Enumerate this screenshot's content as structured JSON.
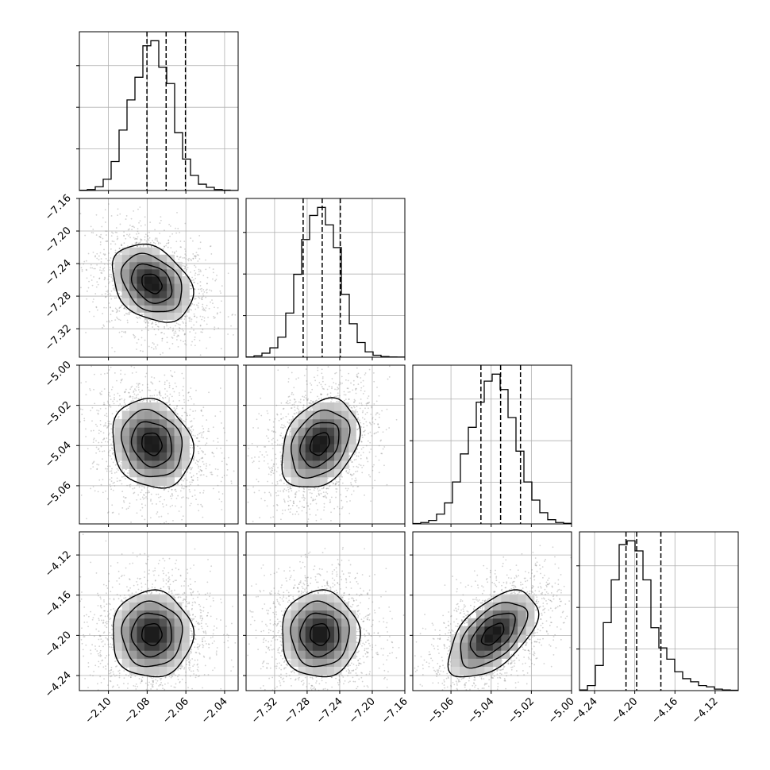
{
  "chart_data": {
    "type": "corner",
    "parameters": 4,
    "axes": [
      {
        "range": [
          -2.115,
          -2.033
        ],
        "ticks": [
          -2.1,
          -2.08,
          -2.06,
          -2.04
        ],
        "tick_labels": [
          "−2.10",
          "−2.08",
          "−2.06",
          "−2.04"
        ]
      },
      {
        "range": [
          -7.355,
          -7.16
        ],
        "ticks": [
          -7.32,
          -7.28,
          -7.24,
          -7.2,
          -7.16
        ],
        "tick_labels": [
          "−7.32",
          "−7.28",
          "−7.24",
          "−7.20",
          "−7.16"
        ]
      },
      {
        "range": [
          -5.079,
          -5.0
        ],
        "ticks": [
          -5.06,
          -5.04,
          -5.02,
          -5.0
        ],
        "tick_labels": [
          "−5.06",
          "−5.04",
          "−5.02",
          "−5.00"
        ]
      },
      {
        "range": [
          -4.255,
          -4.097
        ],
        "ticks": [
          -4.24,
          -4.2,
          -4.16,
          -4.12
        ],
        "tick_labels": [
          "−4.24",
          "−4.20",
          "−4.16",
          "−4.12"
        ]
      }
    ],
    "row_tick_labels": {
      "1": [
        "−7.16",
        "−7.20",
        "−7.24",
        "−7.28",
        "−7.32"
      ],
      "2": [
        "−5.00",
        "−5.02",
        "−5.04",
        "−5.06"
      ],
      "3": [
        "−4.12",
        "−4.16",
        "−4.20",
        "−4.24"
      ]
    },
    "histograms": [
      {
        "bin_edges": [
          -2.115,
          -2.1109,
          -2.1068,
          -2.1027,
          -2.0986,
          -2.0945,
          -2.0904,
          -2.0863,
          -2.0822,
          -2.0781,
          -2.074,
          -2.0699,
          -2.0658,
          -2.0617,
          -2.0576,
          -2.0535,
          -2.0494,
          -2.0453,
          -2.0412,
          -2.0371,
          -2.033
        ],
        "counts": [
          2,
          8,
          30,
          90,
          230,
          480,
          720,
          900,
          1150,
          1190,
          980,
          850,
          460,
          250,
          120,
          50,
          25,
          8,
          3,
          1
        ],
        "quantiles": [
          -2.0801,
          -2.0702,
          -2.0602
        ]
      },
      {
        "bin_edges": [
          -7.355,
          -7.34525,
          -7.3355,
          -7.32575,
          -7.316,
          -7.30625,
          -7.2965,
          -7.28675,
          -7.277,
          -7.26725,
          -7.2575,
          -7.24775,
          -7.238,
          -7.22825,
          -7.2185,
          -7.20875,
          -7.199,
          -7.18925,
          -7.1795,
          -7.16975,
          -7.16
        ],
        "counts": [
          2,
          10,
          30,
          70,
          150,
          330,
          620,
          880,
          1060,
          1120,
          990,
          820,
          470,
          250,
          110,
          40,
          15,
          5,
          2,
          1
        ],
        "quantiles": [
          -7.2849,
          -7.2615,
          -7.2393
        ]
      },
      {
        "bin_edges": [
          -5.079,
          -5.07505,
          -5.0711,
          -5.06715,
          -5.0632,
          -5.05925,
          -5.0553,
          -5.05135,
          -5.0474,
          -5.04345,
          -5.0395,
          -5.03555,
          -5.0316,
          -5.02765,
          -5.0237,
          -5.01975,
          -5.0158,
          -5.01185,
          -5.0079,
          -5.00395,
          -5.0
        ],
        "counts": [
          3,
          10,
          25,
          70,
          150,
          300,
          500,
          690,
          870,
          1020,
          1070,
          960,
          760,
          520,
          300,
          170,
          80,
          30,
          10,
          4
        ],
        "quantiles": [
          -5.0451,
          -5.0353,
          -5.0254
        ]
      },
      {
        "bin_edges": [
          -4.255,
          -4.2471,
          -4.2392,
          -4.2313,
          -4.2234,
          -4.2155,
          -4.2076,
          -4.1997,
          -4.1918,
          -4.1839,
          -4.176,
          -4.1681,
          -4.1602,
          -4.1523,
          -4.1444,
          -4.1365,
          -4.1286,
          -4.1207,
          -4.1128,
          -4.1049,
          -4.097
        ],
        "counts": [
          5,
          40,
          200,
          540,
          880,
          1160,
          1190,
          1110,
          880,
          500,
          340,
          250,
          150,
          95,
          70,
          40,
          30,
          12,
          5,
          3
        ],
        "quantiles": [
          -4.2087,
          -4.1981,
          -4.174
        ]
      }
    ],
    "correlations": {
      "1-0": -0.3,
      "2-0": -0.15,
      "2-1": 0.3,
      "3-0": 0.0,
      "3-1": 0.0,
      "3-2": 0.55
    },
    "grid": true,
    "contour_levels": 4,
    "colors": {
      "line": "#000000",
      "grid": "#b0b0b0",
      "frame": "#000000",
      "scatter": "#7f7f7f",
      "density_dark": "#000000"
    }
  }
}
